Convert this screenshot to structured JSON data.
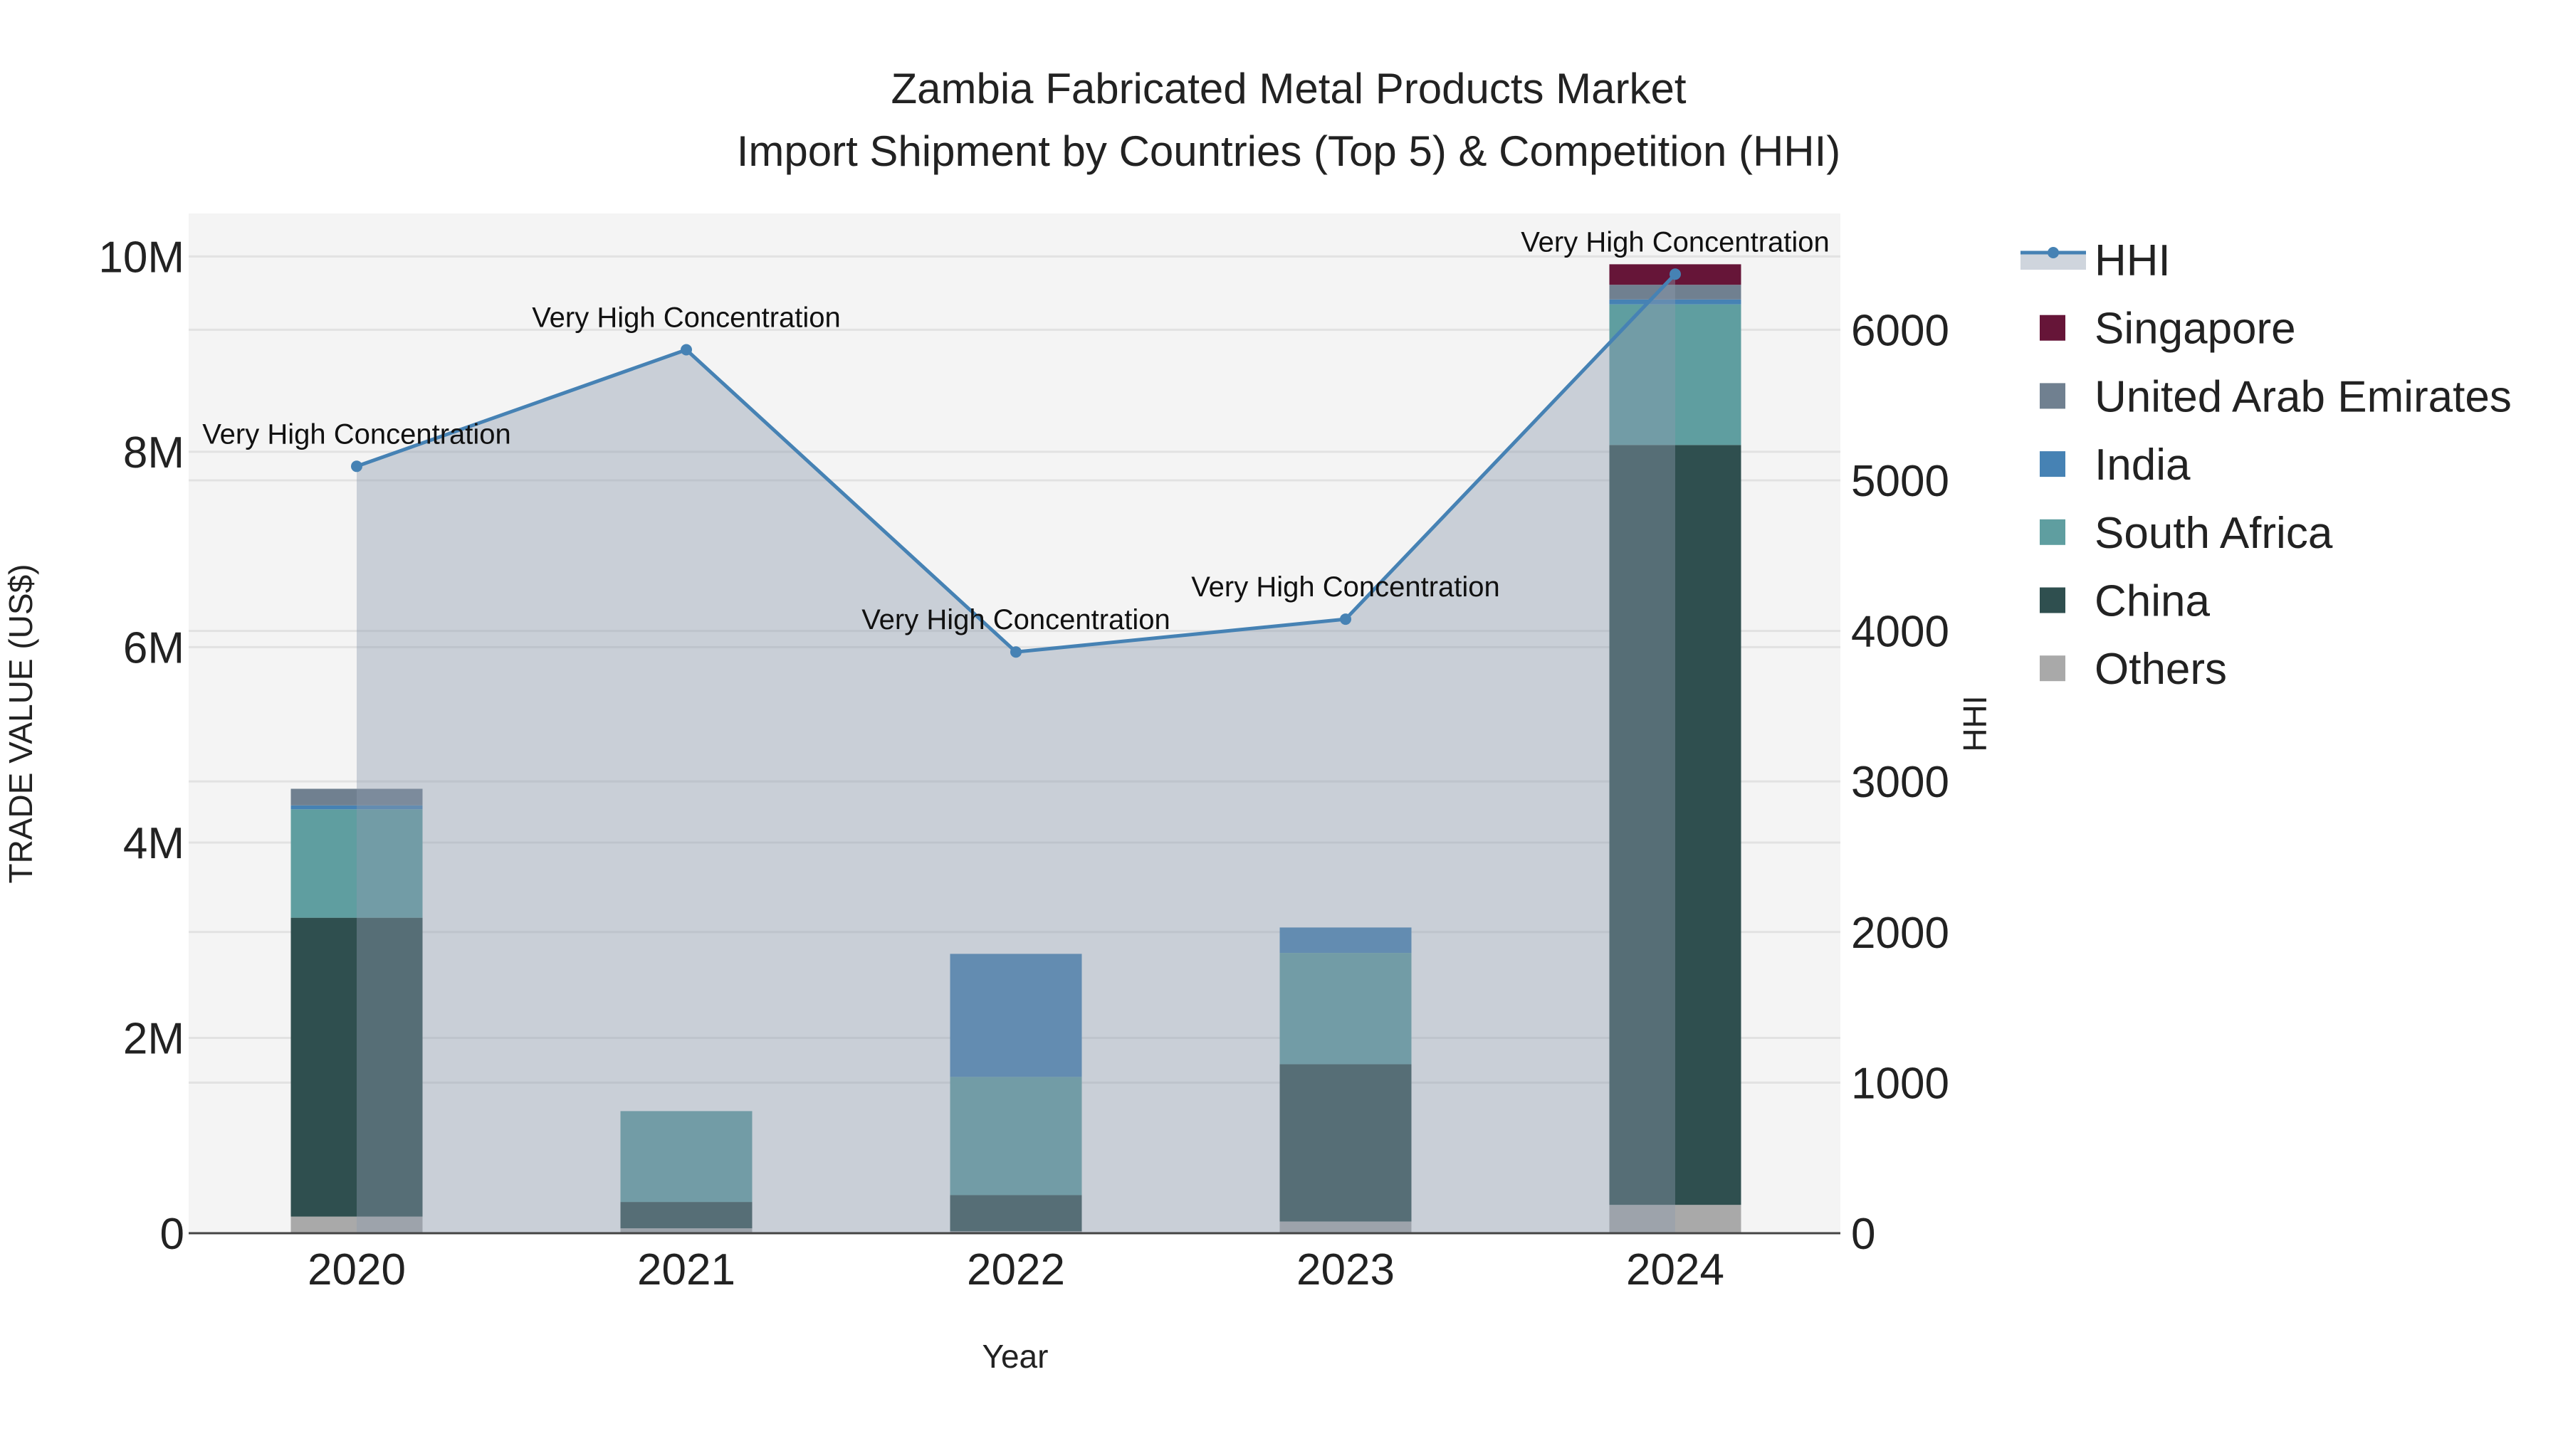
{
  "chart_data": {
    "type": "bar",
    "title": "Zambia Fabricated Metal Products Market",
    "subtitle": "Import Shipment by Countries (Top 5) & Competition (HHI)",
    "xlabel": "Year",
    "ylabel": "TRADE VALUE (US$)",
    "y2label": "HHI",
    "categories": [
      "2020",
      "2021",
      "2022",
      "2023",
      "2024"
    ],
    "ylim": [
      0,
      10440000
    ],
    "y2lim": [
      0,
      6772
    ],
    "yticks": [
      {
        "v": 0,
        "label": "0"
      },
      {
        "v": 2000000,
        "label": "2M"
      },
      {
        "v": 4000000,
        "label": "4M"
      },
      {
        "v": 6000000,
        "label": "6M"
      },
      {
        "v": 8000000,
        "label": "8M"
      },
      {
        "v": 10000000,
        "label": "10M"
      }
    ],
    "y2ticks": [
      {
        "v": 0,
        "label": "0"
      },
      {
        "v": 1000,
        "label": "1000"
      },
      {
        "v": 2000,
        "label": "2000"
      },
      {
        "v": 3000,
        "label": "3000"
      },
      {
        "v": 4000,
        "label": "4000"
      },
      {
        "v": 5000,
        "label": "5000"
      },
      {
        "v": 6000,
        "label": "6000"
      }
    ],
    "series": [
      {
        "name": "Others",
        "color": "#a9a9a9",
        "values": [
          170000,
          50000,
          20000,
          120000,
          290000
        ]
      },
      {
        "name": "China",
        "color": "#2f4f4f",
        "values": [
          3060000,
          270000,
          370000,
          1610000,
          7780000
        ]
      },
      {
        "name": "South Africa",
        "color": "#5f9ea0",
        "values": [
          1110000,
          930000,
          1210000,
          1140000,
          1440000
        ]
      },
      {
        "name": "India",
        "color": "#4682b4",
        "values": [
          40000,
          0,
          1260000,
          260000,
          50000
        ]
      },
      {
        "name": "United Arab Emirates",
        "color": "#708090",
        "values": [
          170000,
          0,
          0,
          0,
          150000
        ]
      },
      {
        "name": "Singapore",
        "color": "#661538",
        "values": [
          0,
          0,
          0,
          0,
          210000
        ]
      }
    ],
    "hhi": {
      "name": "HHI",
      "color": "#4682b4",
      "values": [
        5093,
        5867,
        3860,
        4078,
        6369
      ],
      "annotations": [
        "Very High Concentration",
        "Very High Concentration",
        "Very High Concentration",
        "Very High Concentration",
        "Very High Concentration"
      ]
    },
    "legend": [
      "HHI",
      "Singapore",
      "United Arab Emirates",
      "India",
      "South Africa",
      "China",
      "Others"
    ],
    "legend_position": "right",
    "grid": true
  }
}
